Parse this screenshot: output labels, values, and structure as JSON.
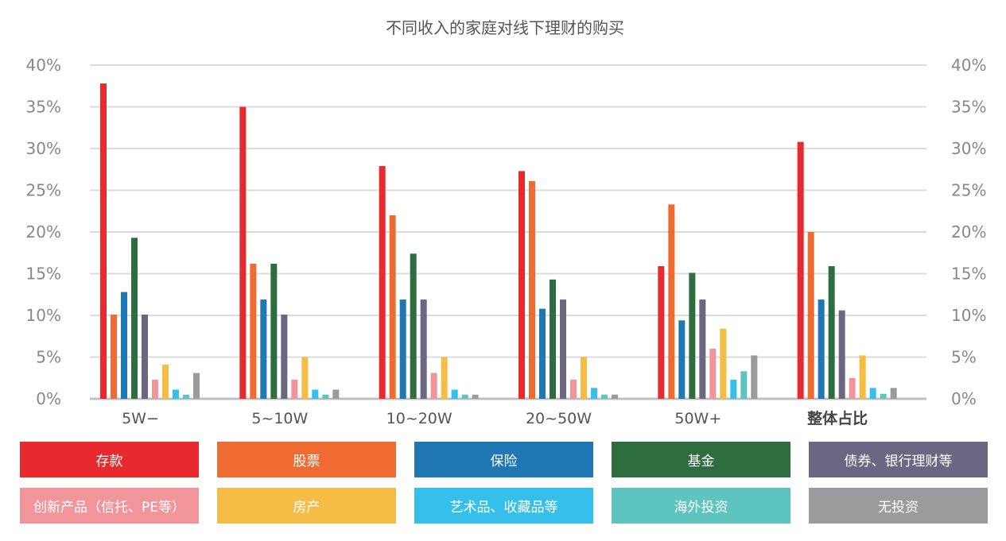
{
  "chart_data": {
    "type": "bar",
    "title": "不同收入的家庭对线下理财的购买",
    "categories": [
      "5W−",
      "5~10W",
      "10~20W",
      "20~50W",
      "50W+",
      "整体占比"
    ],
    "ylim": [
      0,
      40
    ],
    "yticks": [
      "0%",
      "5%",
      "10%",
      "15%",
      "20%",
      "25%",
      "30%",
      "35%",
      "40%"
    ],
    "grid": true,
    "legend_position": "bottom",
    "series": [
      {
        "name": "存款",
        "color": "#e8292e",
        "values": [
          37.8,
          35.0,
          27.9,
          27.3,
          15.9,
          30.8
        ]
      },
      {
        "name": "股票",
        "color": "#ef6b32",
        "values": [
          10.1,
          16.2,
          22.0,
          26.1,
          23.3,
          20.0
        ]
      },
      {
        "name": "保险",
        "color": "#1f77b4",
        "values": [
          12.8,
          11.9,
          11.9,
          10.8,
          9.4,
          11.9
        ]
      },
      {
        "name": "基金",
        "color": "#2e6e3e",
        "values": [
          19.3,
          16.2,
          17.4,
          14.3,
          15.1,
          15.9
        ]
      },
      {
        "name": "债券、银行理财等",
        "color": "#6b6682",
        "values": [
          10.1,
          10.1,
          11.9,
          11.9,
          11.9,
          10.6
        ]
      },
      {
        "name": "创新产品（信托、PE等）",
        "color": "#f1959b",
        "values": [
          2.3,
          2.3,
          3.1,
          2.3,
          6.0,
          2.5
        ]
      },
      {
        "name": "房产",
        "color": "#f5bd45",
        "values": [
          4.1,
          5.0,
          5.0,
          5.0,
          8.4,
          5.2
        ]
      },
      {
        "name": "艺术品、收藏品等",
        "color": "#34c0ea",
        "values": [
          1.1,
          1.1,
          1.1,
          1.3,
          2.3,
          1.3
        ]
      },
      {
        "name": "海外投资",
        "color": "#5ec4bf",
        "values": [
          0.5,
          0.5,
          0.5,
          0.5,
          3.3,
          0.6
        ]
      },
      {
        "name": "无投资",
        "color": "#9b9a9c",
        "values": [
          3.1,
          1.1,
          0.5,
          0.5,
          5.2,
          1.3
        ]
      }
    ]
  }
}
